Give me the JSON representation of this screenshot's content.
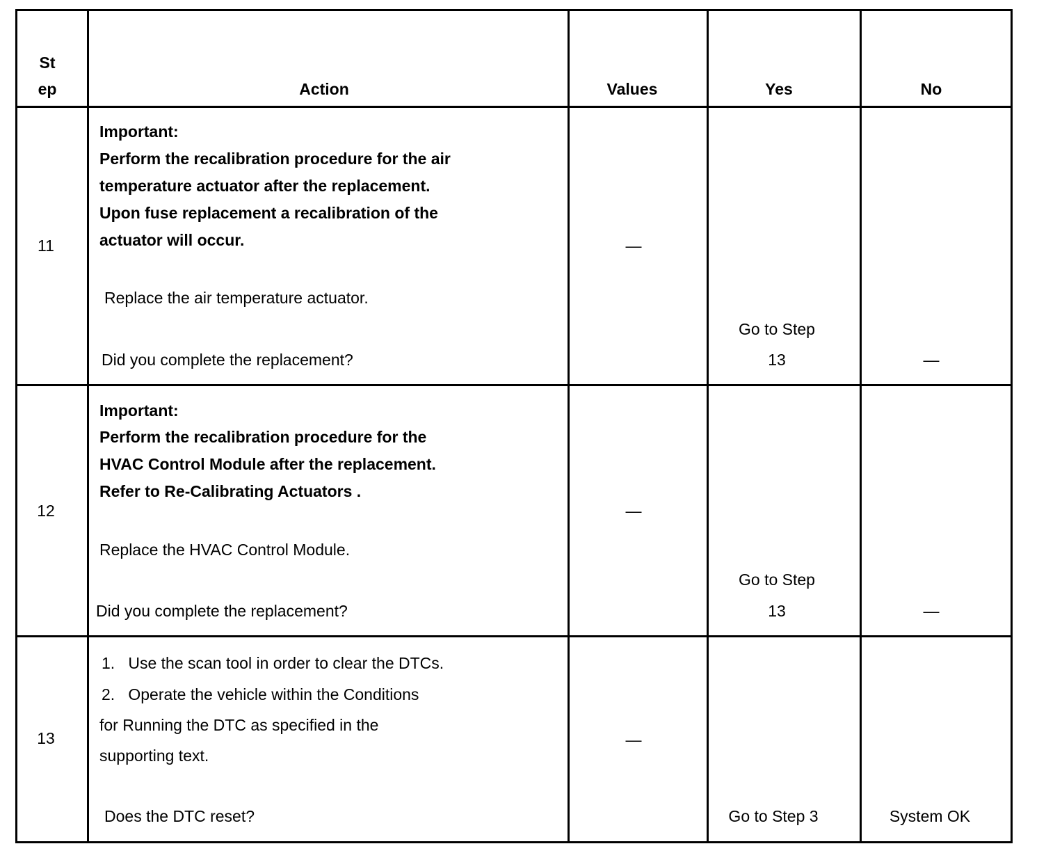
{
  "headers": {
    "step_line1": "St",
    "step_line2": "ep",
    "action": "Action",
    "values": "Values",
    "yes": "Yes",
    "no": "No"
  },
  "rows": [
    {
      "step": "11",
      "important_label": "Important:",
      "important_lines": [
        "Perform the recalibration procedure for the air",
        "temperature actuator after the replacement.",
        "Upon fuse replacement a recalibration of the",
        "actuator will occur."
      ],
      "instruction": "Replace the air temperature actuator.",
      "question": "Did you complete the replacement?",
      "values": "—",
      "yes_line1": "Go to Step",
      "yes_line2": "13",
      "no": "—"
    },
    {
      "step": "12",
      "important_label": "Important:",
      "important_lines": [
        "Perform the recalibration procedure for the",
        "HVAC Control Module after the replacement.",
        "Refer to Re-Calibrating Actuators ."
      ],
      "instruction": "Replace the HVAC Control Module.",
      "question": "Did you complete the replacement?",
      "values": "—",
      "yes_line1": "Go to Step",
      "yes_line2": "13",
      "no": "—"
    },
    {
      "step": "13",
      "list_lines": [
        "1.   Use the scan tool in order to clear the DTCs.",
        "2.   Operate the vehicle within the Conditions",
        "for Running the DTC as specified in the",
        "supporting text."
      ],
      "question": "Does the DTC reset?",
      "values": "—",
      "yes": "Go to Step 3",
      "no": "System OK"
    }
  ]
}
